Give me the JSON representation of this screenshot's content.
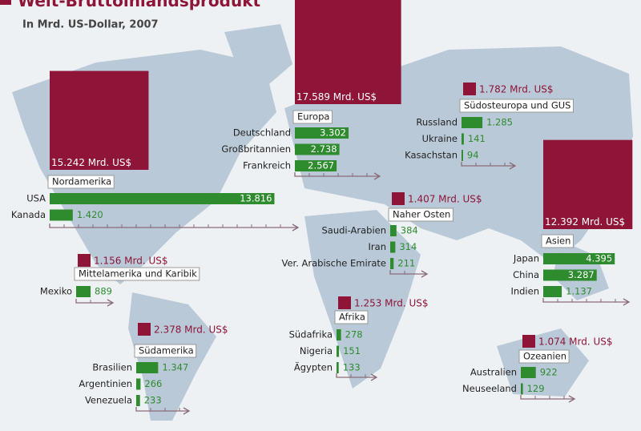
{
  "title": "Welt-Bruttoinlandsprodukt",
  "subtitle": "In Mrd. US-Dollar, 2007",
  "regions": [
    {
      "name": "Nordamerika",
      "total": 15242,
      "total_label": "15.242 Mrd. US$",
      "countries": [
        {
          "name": "USA",
          "value": 13816,
          "value_label": "13.816"
        },
        {
          "name": "Kanada",
          "value": 1420,
          "value_label": "1.420"
        }
      ]
    },
    {
      "name": "Europa",
      "total": 17589,
      "total_label": "17.589 Mrd. US$",
      "countries": [
        {
          "name": "Deutschland",
          "value": 3302,
          "value_label": "3.302"
        },
        {
          "name": "Großbritannien",
          "value": 2738,
          "value_label": "2.738"
        },
        {
          "name": "Frankreich",
          "value": 2567,
          "value_label": "2.567"
        }
      ]
    },
    {
      "name": "Südosteuropa und GUS",
      "total": 1782,
      "total_label": "1.782 Mrd. US$",
      "countries": [
        {
          "name": "Russland",
          "value": 1285,
          "value_label": "1.285"
        },
        {
          "name": "Ukraine",
          "value": 141
        },
        {
          "name": "Kasachstan",
          "value": 94
        }
      ]
    },
    {
      "name": "Naher Osten",
      "total": 1407,
      "total_label": "1.407 Mrd. US$",
      "countries": [
        {
          "name": "Saudi-Arabien",
          "value": 384
        },
        {
          "name": "Iran",
          "value": 314
        },
        {
          "name": "Ver. Arabische Emirate",
          "value": 211
        }
      ]
    },
    {
      "name": "Asien",
      "total": 12392,
      "total_label": "12.392 Mrd. US$",
      "countries": [
        {
          "name": "Japan",
          "value": 4395,
          "value_label": "4.395"
        },
        {
          "name": "China",
          "value": 3287,
          "value_label": "3.287"
        },
        {
          "name": "Indien",
          "value": 1137,
          "value_label": "1.137"
        }
      ]
    },
    {
      "name": "Mittelamerika und Karibik",
      "total": 1156,
      "total_label": "1.156 Mrd. US$",
      "countries": [
        {
          "name": "Mexiko",
          "value": 889
        }
      ]
    },
    {
      "name": "Afrika",
      "total": 1253,
      "total_label": "1.253 Mrd. US$",
      "countries": [
        {
          "name": "Südafrika",
          "value": 278
        },
        {
          "name": "Nigeria",
          "value": 151
        },
        {
          "name": "Ägypten",
          "value": 133
        }
      ]
    },
    {
      "name": "Südamerika",
      "total": 2378,
      "total_label": "2.378 Mrd. US$",
      "countries": [
        {
          "name": "Brasilien",
          "value": 1347,
          "value_label": "1.347"
        },
        {
          "name": "Argentinien",
          "value": 266
        },
        {
          "name": "Venezuela",
          "value": 233
        }
      ]
    },
    {
      "name": "Ozeanien",
      "total": 1074,
      "total_label": "1.074 Mrd. US$",
      "countries": [
        {
          "name": "Australien",
          "value": 922
        },
        {
          "name": "Neuseeland",
          "value": 129
        }
      ]
    }
  ]
}
